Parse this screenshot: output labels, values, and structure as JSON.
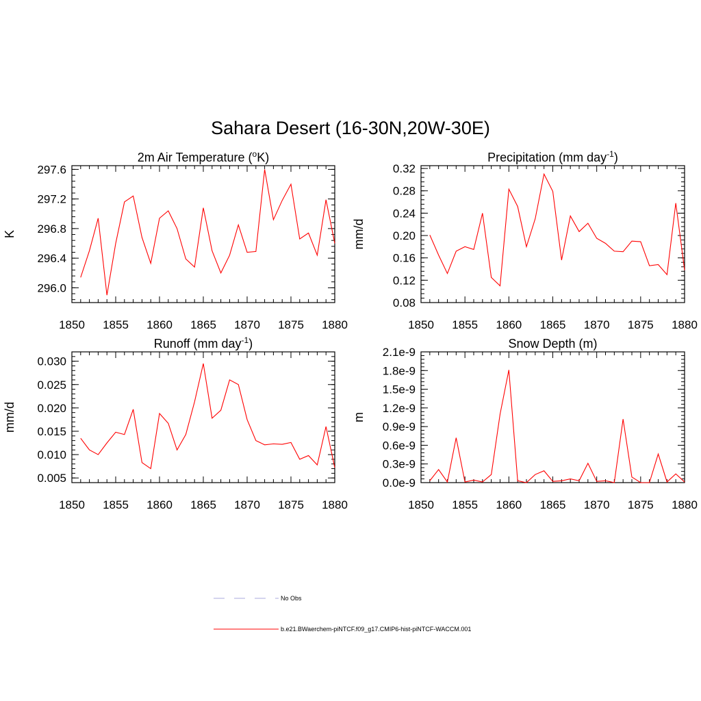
{
  "main_title": "Sahara Desert (16-30N,20W-30E)",
  "legend": [
    {
      "label": "No Obs",
      "color": "#aaaadd",
      "dash": true
    },
    {
      "label": "b.e21.BWaerchem-piNTCF.f09_g17.CMIP6-hist-piNTCF-WACCM.001",
      "color": "#ff0000",
      "dash": false
    }
  ],
  "line_color": "#ff0000",
  "chart_data": [
    {
      "type": "line",
      "title": "2m Air Temperature (",
      "title_sup": "o",
      "title_rest": "K)",
      "ylabel": "K",
      "xlim": [
        1850,
        1880
      ],
      "ylim": [
        295.8,
        297.65
      ],
      "xticks": [
        1850,
        1855,
        1860,
        1865,
        1870,
        1875,
        1880
      ],
      "yticks": [
        296.0,
        296.4,
        296.8,
        297.2,
        297.6
      ],
      "ytick_labels": [
        "296.0",
        "296.4",
        "296.8",
        "297.2",
        "297.6"
      ],
      "x": [
        1851,
        1852,
        1853,
        1854,
        1855,
        1856,
        1857,
        1858,
        1859,
        1860,
        1861,
        1862,
        1863,
        1864,
        1865,
        1866,
        1867,
        1868,
        1869,
        1870,
        1871,
        1872,
        1873,
        1874,
        1875,
        1876,
        1877,
        1878,
        1879,
        1880
      ],
      "y": [
        296.14,
        296.5,
        296.94,
        295.9,
        296.6,
        297.16,
        297.24,
        296.68,
        296.33,
        296.94,
        297.04,
        296.8,
        296.39,
        296.28,
        297.08,
        296.5,
        296.2,
        296.44,
        296.85,
        296.48,
        296.49,
        297.6,
        296.92,
        297.18,
        297.4,
        296.66,
        296.74,
        296.44,
        297.19,
        296.6
      ]
    },
    {
      "type": "line",
      "title": "Precipitation (mm day",
      "title_sup": "-1",
      "title_rest": ")",
      "ylabel": "mm/d",
      "xlim": [
        1850,
        1880
      ],
      "ylim": [
        0.08,
        0.325
      ],
      "xticks": [
        1850,
        1855,
        1860,
        1865,
        1870,
        1875,
        1880
      ],
      "yticks": [
        0.08,
        0.12,
        0.16,
        0.2,
        0.24,
        0.28,
        0.32
      ],
      "ytick_labels": [
        "0.08",
        "0.12",
        "0.16",
        "0.20",
        "0.24",
        "0.28",
        "0.32"
      ],
      "x": [
        1851,
        1852,
        1853,
        1854,
        1855,
        1856,
        1857,
        1858,
        1859,
        1860,
        1861,
        1862,
        1863,
        1864,
        1865,
        1866,
        1867,
        1868,
        1869,
        1870,
        1871,
        1872,
        1873,
        1874,
        1875,
        1876,
        1877,
        1878,
        1879,
        1880
      ],
      "y": [
        0.201,
        0.165,
        0.132,
        0.172,
        0.18,
        0.175,
        0.24,
        0.125,
        0.11,
        0.283,
        0.252,
        0.18,
        0.23,
        0.31,
        0.279,
        0.156,
        0.235,
        0.207,
        0.222,
        0.195,
        0.186,
        0.172,
        0.171,
        0.19,
        0.189,
        0.146,
        0.148,
        0.13,
        0.258,
        0.138
      ]
    },
    {
      "type": "line",
      "title": "Runoff (mm day",
      "title_sup": "-1",
      "title_rest": ")",
      "ylabel": "mm/d",
      "xlim": [
        1850,
        1880
      ],
      "ylim": [
        0.004,
        0.032
      ],
      "xticks": [
        1850,
        1855,
        1860,
        1865,
        1870,
        1875,
        1880
      ],
      "yticks": [
        0.005,
        0.01,
        0.015,
        0.02,
        0.025,
        0.03
      ],
      "ytick_labels": [
        "0.005",
        "0.010",
        "0.015",
        "0.020",
        "0.025",
        "0.030"
      ],
      "x": [
        1851,
        1852,
        1853,
        1854,
        1855,
        1856,
        1857,
        1858,
        1859,
        1860,
        1861,
        1862,
        1863,
        1864,
        1865,
        1866,
        1867,
        1868,
        1869,
        1870,
        1871,
        1872,
        1873,
        1874,
        1875,
        1876,
        1877,
        1878,
        1879,
        1880
      ],
      "y": [
        0.0135,
        0.011,
        0.01,
        0.0125,
        0.0148,
        0.0143,
        0.0197,
        0.0083,
        0.007,
        0.0188,
        0.0167,
        0.011,
        0.0143,
        0.0213,
        0.0295,
        0.0178,
        0.0195,
        0.026,
        0.025,
        0.0175,
        0.013,
        0.0121,
        0.0123,
        0.0122,
        0.0126,
        0.009,
        0.0098,
        0.0078,
        0.016,
        0.0072
      ]
    },
    {
      "type": "line",
      "title": "Snow Depth (m)",
      "title_sup": "",
      "title_rest": "",
      "ylabel": "m",
      "xlim": [
        1850,
        1880
      ],
      "ylim": [
        0.0,
        2.1e-09
      ],
      "xticks": [
        1850,
        1855,
        1860,
        1865,
        1870,
        1875,
        1880
      ],
      "yticks": [
        0,
        3e-10,
        6e-10,
        9e-10,
        1.2e-09,
        1.5e-09,
        1.8e-09,
        2.1e-09
      ],
      "ytick_labels": [
        "0.0e-9",
        "0.3e-9",
        "0.6e-9",
        "0.9e-9",
        "1.2e-9",
        "1.5e-9",
        "1.8e-9",
        "2.1e-9"
      ],
      "x": [
        1851,
        1852,
        1853,
        1854,
        1855,
        1856,
        1857,
        1858,
        1859,
        1860,
        1861,
        1862,
        1863,
        1864,
        1865,
        1866,
        1867,
        1868,
        1869,
        1870,
        1871,
        1872,
        1873,
        1874,
        1875,
        1876,
        1877,
        1878,
        1879,
        1880
      ],
      "y": [
        3e-11,
        2.1e-10,
        1e-11,
        7.2e-10,
        1e-11,
        4e-11,
        1e-11,
        1.3e-10,
        1.1e-09,
        1.81e-09,
        3e-11,
        0,
        1.3e-10,
        1.9e-10,
        2e-11,
        3e-11,
        6e-11,
        3e-11,
        3.1e-10,
        2e-11,
        3e-11,
        0,
        1.02e-09,
        9e-11,
        0,
        0,
        4.6e-10,
        1e-11,
        1.4e-10,
        1e-11
      ]
    }
  ]
}
